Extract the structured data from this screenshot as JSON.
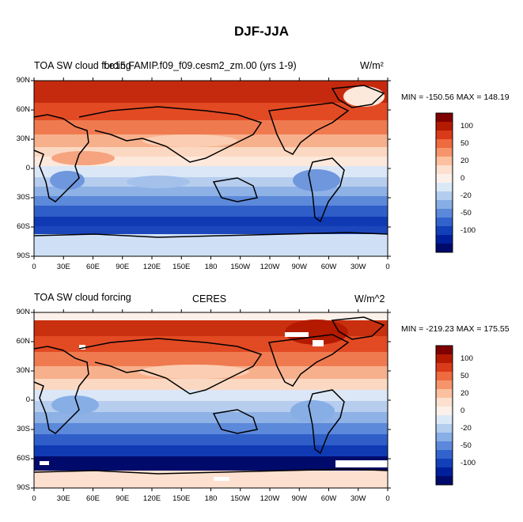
{
  "title": "DJF-JJA",
  "panels": [
    {
      "id": "model",
      "left_label": "TOA SW cloud forcing",
      "center_label": "f.e15.FAMIP.f09_f09.cesm2_zm.00 (yrs 1-9)",
      "units": "W/m²",
      "stats": "MIN = -150.56  MAX = 148.19"
    },
    {
      "id": "obs",
      "left_label": "TOA SW cloud forcing",
      "center_label": "CERES",
      "units": "W/m^2",
      "stats": "MIN = -219.23  MAX = 175.55"
    }
  ],
  "lat_ticks": [
    "90N",
    "60N",
    "30N",
    "0",
    "30S",
    "60S",
    "90S"
  ],
  "lon_ticks": [
    "0",
    "30E",
    "60E",
    "90E",
    "120E",
    "150E",
    "180",
    "150W",
    "120W",
    "90W",
    "60W",
    "30W",
    "0"
  ],
  "colorbar": {
    "labels": [
      "100",
      "50",
      "20",
      "0",
      "-20",
      "-50",
      "-100"
    ],
    "colors": [
      "#7f0000",
      "#b31a00",
      "#d93a1a",
      "#ef6a3f",
      "#f6956b",
      "#fbc1a0",
      "#fde0cf",
      "#fbf1ea",
      "#dbe9f7",
      "#b3cdef",
      "#88aee6",
      "#5b88da",
      "#3262cc",
      "#133fb8",
      "#001f9c",
      "#000a6b"
    ]
  }
}
